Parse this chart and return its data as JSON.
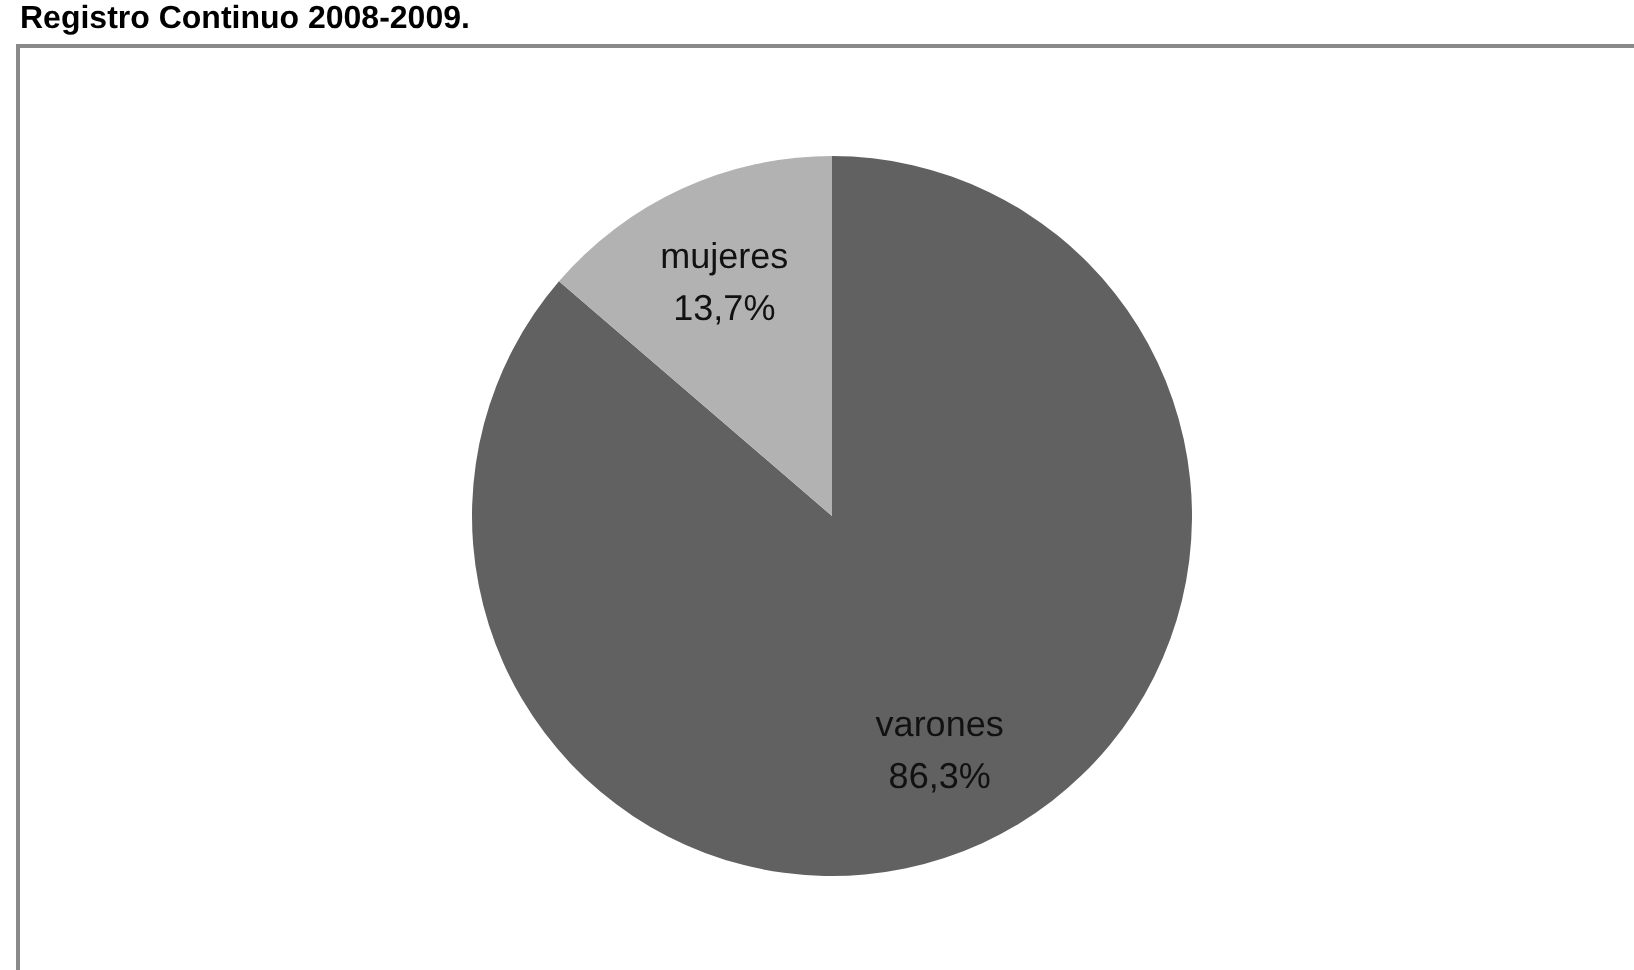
{
  "chart_data": {
    "type": "pie",
    "title": "Registro Continuo 2008-2009.",
    "categories": [
      "varones",
      "mujeres"
    ],
    "values": [
      86.3,
      13.7
    ],
    "colors": [
      "#616161",
      "#b2b2b2"
    ],
    "value_labels": [
      "86,3%",
      "13,7%"
    ],
    "legend": false
  }
}
